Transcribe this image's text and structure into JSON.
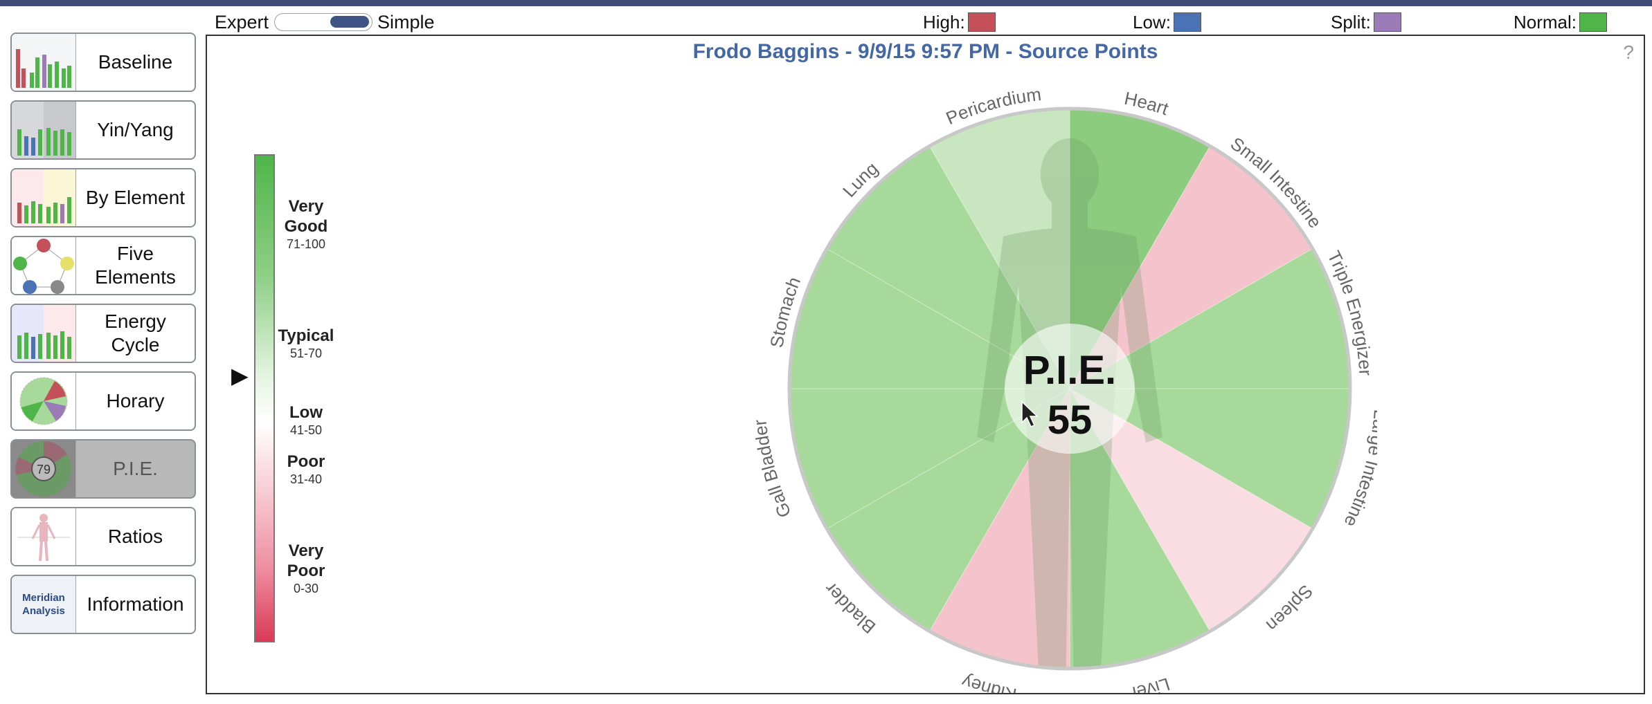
{
  "header": {
    "mode_left": "Expert",
    "mode_right": "Simple",
    "legend": [
      {
        "label": "High:",
        "color": "#c4505a"
      },
      {
        "label": "Low:",
        "color": "#4a72b5"
      },
      {
        "label": "Split:",
        "color": "#9b7ab8"
      },
      {
        "label": "Normal:",
        "color": "#4fb548"
      }
    ]
  },
  "sidebar": {
    "items": [
      {
        "label": "Baseline",
        "icon": "bar-chart-icon"
      },
      {
        "label": "Yin/Yang",
        "icon": "yin-yang-bars-icon"
      },
      {
        "label": "By Element",
        "icon": "element-bars-icon"
      },
      {
        "label": "Five Elements",
        "icon": "five-elements-icon"
      },
      {
        "label": "Energy Cycle",
        "icon": "energy-cycle-icon"
      },
      {
        "label": "Horary",
        "icon": "horary-pie-icon"
      },
      {
        "label": "P.I.E.",
        "icon": "pie-icon",
        "thumb_text": "79"
      },
      {
        "label": "Ratios",
        "icon": "body-figure-icon"
      },
      {
        "label": "Information",
        "icon": "meridian-analysis-icon",
        "thumb_text": "Meridian Analysis"
      }
    ],
    "active_index": 6
  },
  "panel": {
    "title": "Frodo Baggins - 9/9/15 9:57 PM - Source Points",
    "help": "?"
  },
  "scale": {
    "levels": [
      {
        "name": "Very Good",
        "range": "71-100"
      },
      {
        "name": "Typical",
        "range": "51-70"
      },
      {
        "name": "Low",
        "range": "41-50"
      },
      {
        "name": "Poor",
        "range": "31-40"
      },
      {
        "name": "Very Poor",
        "range": "0-30"
      }
    ],
    "current_value": 55
  },
  "pie": {
    "center_label": "P.I.E.",
    "center_value": "55",
    "segments": [
      {
        "name": "Heart",
        "category": "very-good",
        "color": "#8ccc7f"
      },
      {
        "name": "Small Intestine",
        "category": "poor",
        "color": "#f5c3cc"
      },
      {
        "name": "Triple Energizer",
        "category": "good",
        "color": "#a6d99a"
      },
      {
        "name": "Large Intestine",
        "category": "good",
        "color": "#a6d99a"
      },
      {
        "name": "Spleen",
        "category": "low",
        "color": "#f9dde2"
      },
      {
        "name": "Liver",
        "category": "good",
        "color": "#a6d99a"
      },
      {
        "name": "Kidney",
        "category": "poor",
        "color": "#f5c3cc"
      },
      {
        "name": "Bladder",
        "category": "good",
        "color": "#a6d99a"
      },
      {
        "name": "Gall Bladder",
        "category": "good",
        "color": "#a6d99a"
      },
      {
        "name": "Stomach",
        "category": "good",
        "color": "#a6d99a"
      },
      {
        "name": "Lung",
        "category": "good",
        "color": "#a6d99a"
      },
      {
        "name": "Pericardium",
        "category": "typical",
        "color": "#c8e6c0"
      }
    ]
  }
}
